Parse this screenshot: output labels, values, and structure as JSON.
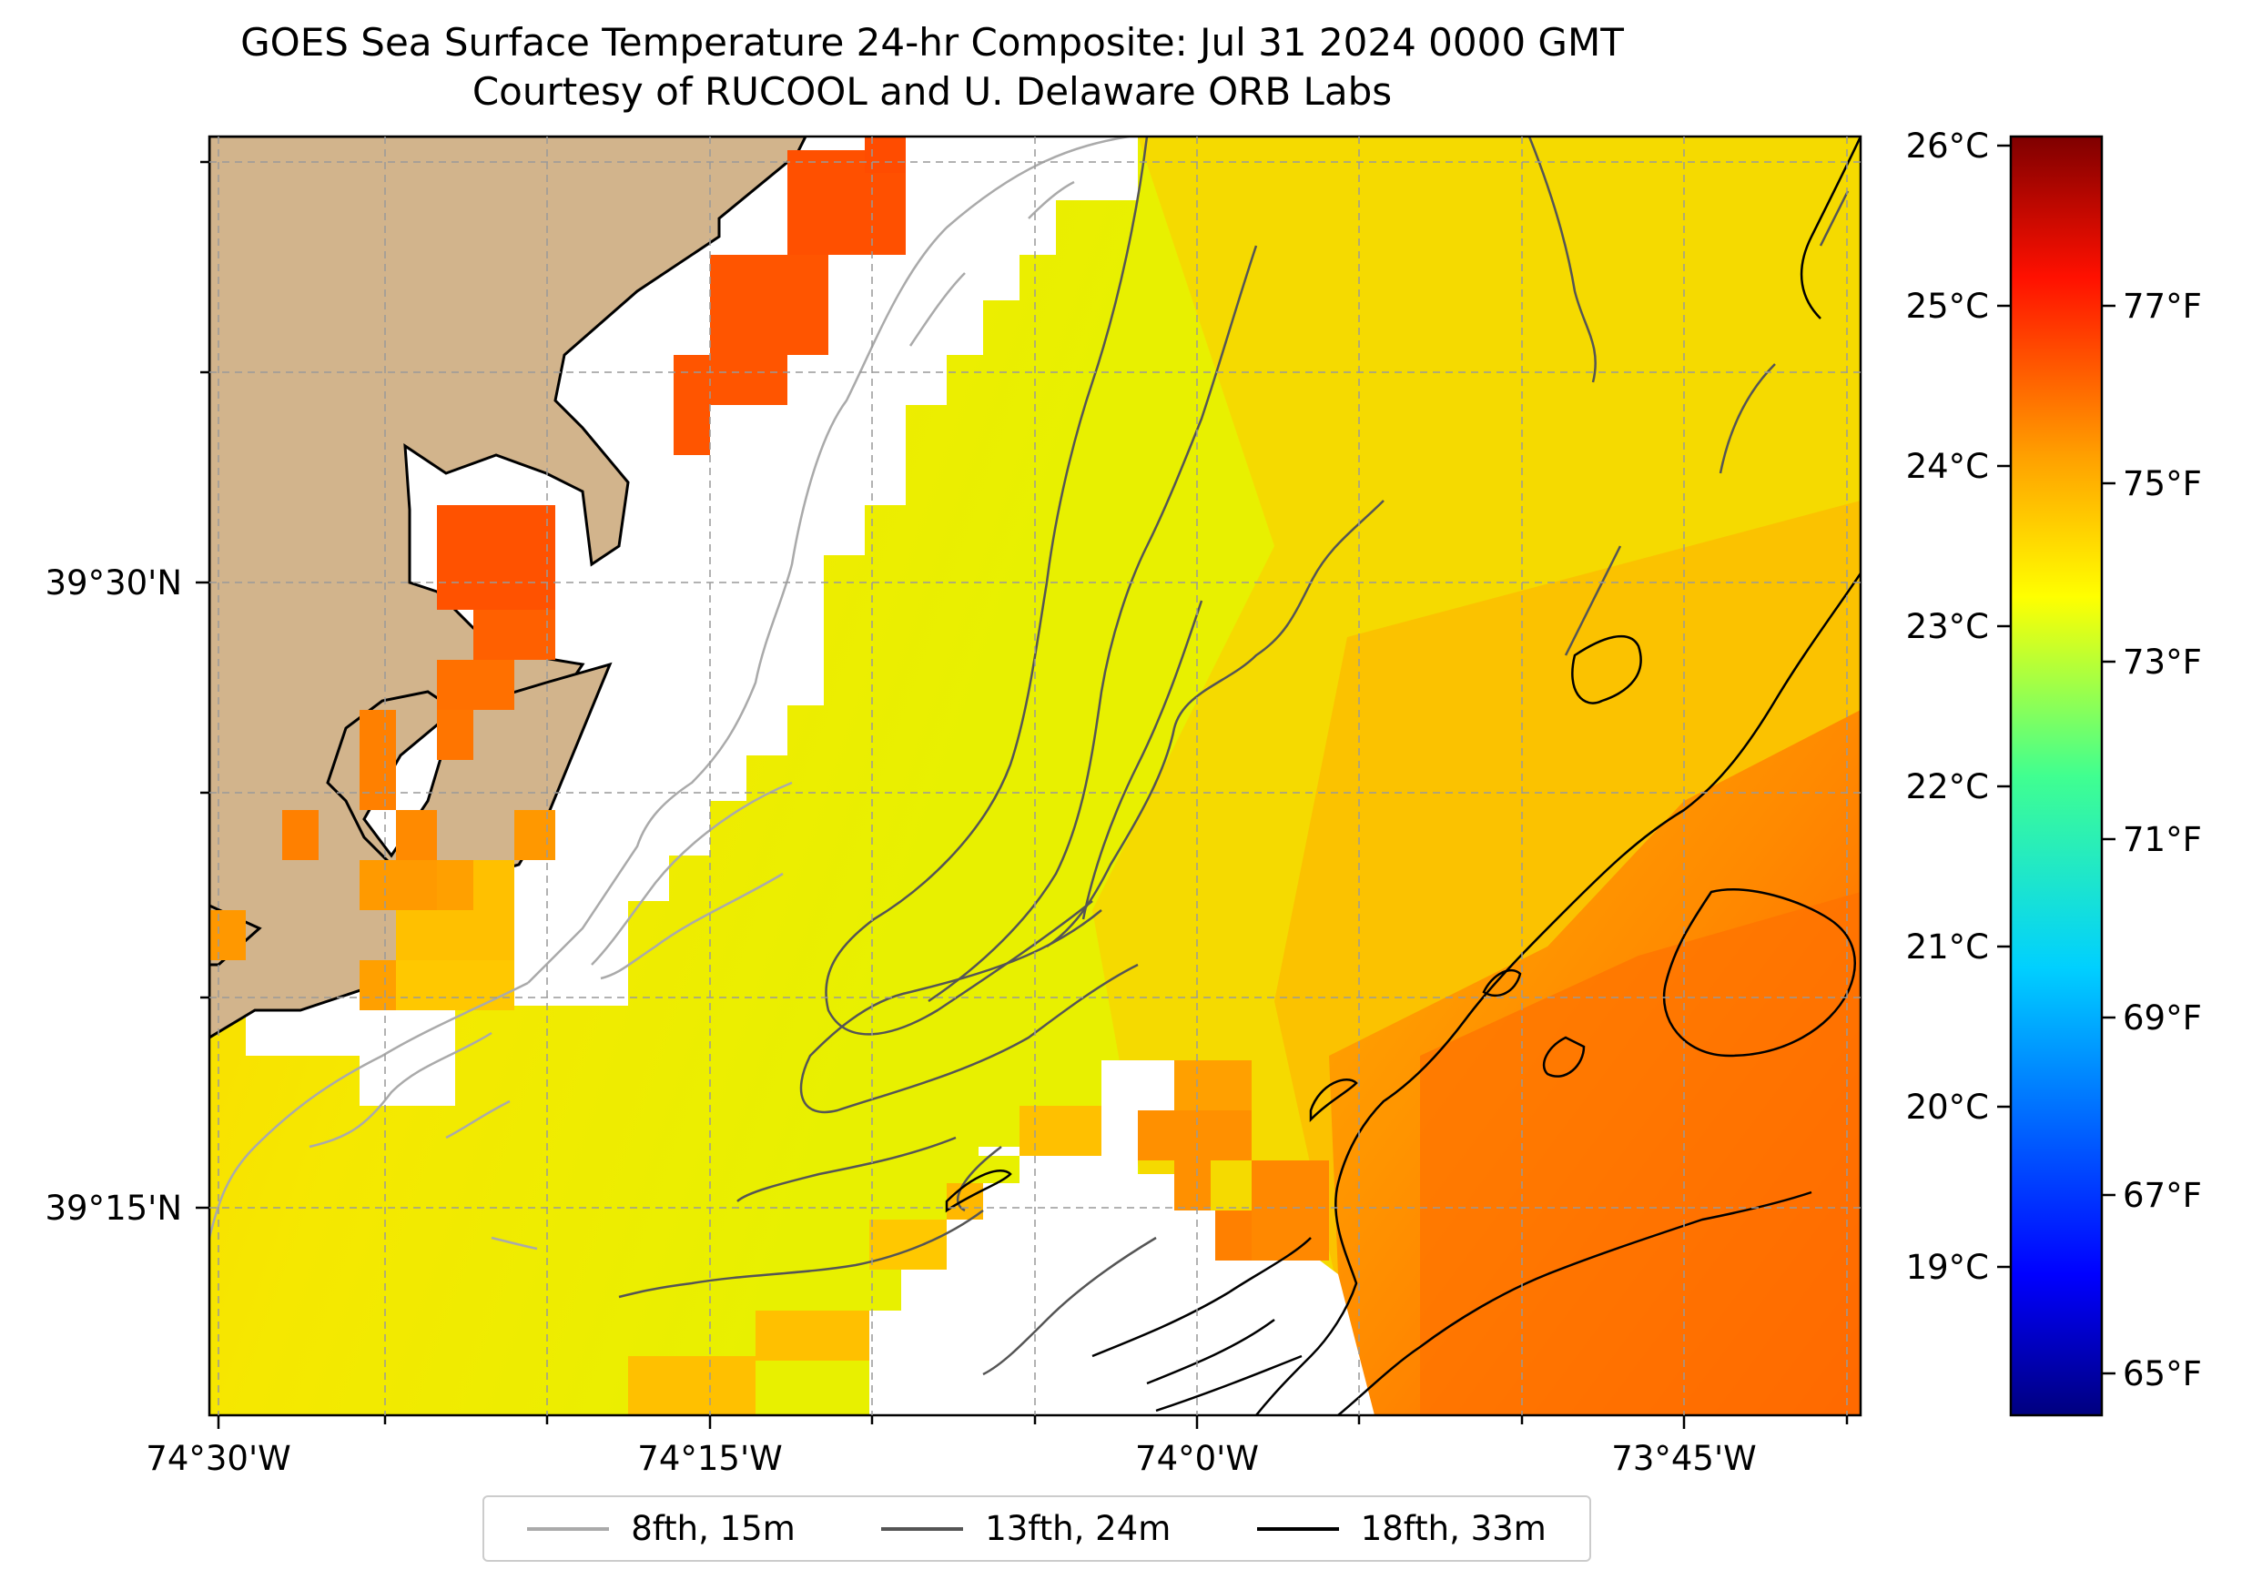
{
  "title": {
    "line1": "GOES Sea Surface Temperature 24-hr Composite: Jul 31 2024 0000 GMT",
    "line2": "Courtesy of RUCOOL and U. Delaware ORB Labs"
  },
  "axes": {
    "x_ticks": [
      "74°30'W",
      "74°15'W",
      "74°0'W",
      "73°45'W"
    ],
    "y_ticks": [
      "39°30'N",
      "39°15'N"
    ]
  },
  "colorbar": {
    "celsius_ticks": [
      "26°C",
      "25°C",
      "24°C",
      "23°C",
      "22°C",
      "21°C",
      "20°C",
      "19°C"
    ],
    "fahrenheit_ticks": [
      "77°F",
      "75°F",
      "73°F",
      "71°F",
      "69°F",
      "67°F",
      "65°F"
    ],
    "colormap": "jet",
    "range_celsius": [
      18,
      26
    ]
  },
  "legend": [
    {
      "label": "8fth, 15m",
      "color": "#aaaaaa"
    },
    {
      "label": "13fth, 24m",
      "color": "#555555"
    },
    {
      "label": "18fth, 33m",
      "color": "#000000"
    }
  ],
  "colors": {
    "land": "#d2b48c",
    "no_data": "#ffffff"
  }
}
